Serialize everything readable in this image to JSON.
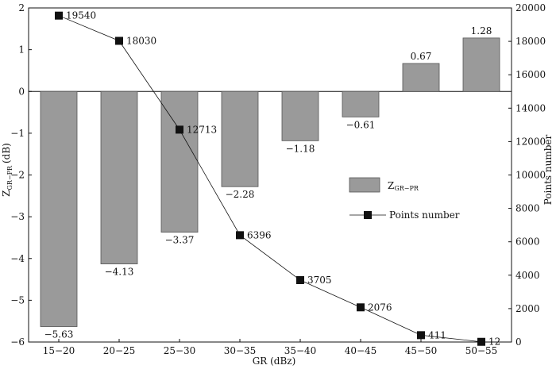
{
  "chart_data": {
    "type": "bar+line",
    "categories": [
      "15−20",
      "20−25",
      "25−30",
      "30−35",
      "35−40",
      "40−45",
      "45−50",
      "50−55"
    ],
    "xlabel": "GR (dBz)",
    "ylabel_main": "Z",
    "ylabel_sub": "GR−PR",
    "ylabel_unit": "(dB)",
    "y2label": "Points number",
    "ylim": [
      -6,
      2
    ],
    "y_ticks": [
      2,
      1,
      0,
      -1,
      -2,
      -3,
      -4,
      -5,
      -6
    ],
    "y_tick_labels": [
      "2",
      "1",
      "0",
      "−1",
      "−2",
      "−3",
      "−4",
      "−5",
      "−6"
    ],
    "y2lim": [
      0,
      20000
    ],
    "y2_ticks": [
      0,
      2000,
      4000,
      6000,
      8000,
      10000,
      12000,
      14000,
      16000,
      18000,
      20000
    ],
    "y2_tick_labels": [
      "0",
      "2000",
      "4000",
      "6000",
      "8000",
      "10000",
      "12000",
      "14000",
      "16000",
      "18000",
      "20000"
    ],
    "series": [
      {
        "name": "Z_GR-PR",
        "kind": "bar",
        "axis": "left",
        "color": "#9a9a9a",
        "values": [
          -5.63,
          -4.13,
          -3.37,
          -2.28,
          -1.18,
          -0.61,
          0.67,
          1.28
        ],
        "labels": [
          "−5.63",
          "−4.13",
          "−3.37",
          "−2.28",
          "−1.18",
          "−0.61",
          "0.67",
          "1.28"
        ]
      },
      {
        "name": "Points number",
        "kind": "line",
        "axis": "right",
        "color": "#111111",
        "marker": "square",
        "values": [
          19540,
          18030,
          12713,
          6396,
          3705,
          2076,
          411,
          12
        ],
        "labels": [
          "19540",
          "18030",
          "12713",
          "6396",
          "3705",
          "2076",
          "411",
          "12"
        ]
      }
    ],
    "legend": {
      "position": "center-right",
      "bar_main": "Z",
      "bar_sub": "GR−PR",
      "line_label": "Points number"
    }
  }
}
